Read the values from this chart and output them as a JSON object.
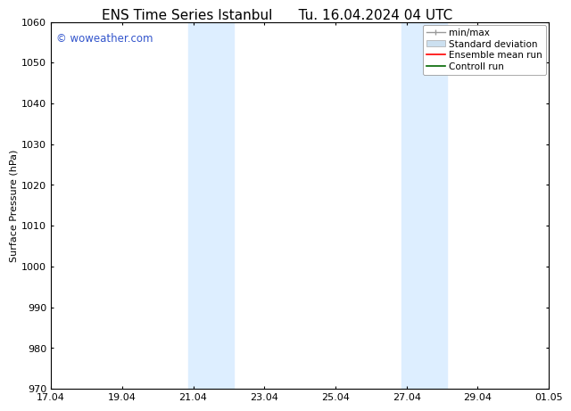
{
  "title_left": "ENS Time Series Istanbul",
  "title_right": "Tu. 16.04.2024 04 UTC",
  "ylabel": "Surface Pressure (hPa)",
  "ylim": [
    970,
    1060
  ],
  "yticks": [
    970,
    980,
    990,
    1000,
    1010,
    1020,
    1030,
    1040,
    1050,
    1060
  ],
  "xtick_labels": [
    "17.04",
    "19.04",
    "21.04",
    "23.04",
    "25.04",
    "27.04",
    "29.04",
    "01.05"
  ],
  "xtick_positions": [
    0,
    2,
    4,
    6,
    8,
    10,
    12,
    14
  ],
  "x_total_days": 14,
  "shaded_bands": [
    {
      "x_start": 3.85,
      "x_end": 5.15
    },
    {
      "x_start": 9.85,
      "x_end": 11.15
    }
  ],
  "shade_color": "#ddeeff",
  "background_color": "#ffffff",
  "watermark_text": "© woweather.com",
  "watermark_color": "#3355cc",
  "legend_items": [
    {
      "label": "min/max",
      "color": "#aaaaaa"
    },
    {
      "label": "Standard deviation",
      "color": "#ccddee"
    },
    {
      "label": "Ensemble mean run",
      "color": "#ff0000"
    },
    {
      "label": "Controll run",
      "color": "#008800"
    }
  ],
  "title_fontsize": 11,
  "axis_fontsize": 8,
  "tick_fontsize": 8,
  "legend_fontsize": 7.5,
  "watermark_fontsize": 8.5
}
